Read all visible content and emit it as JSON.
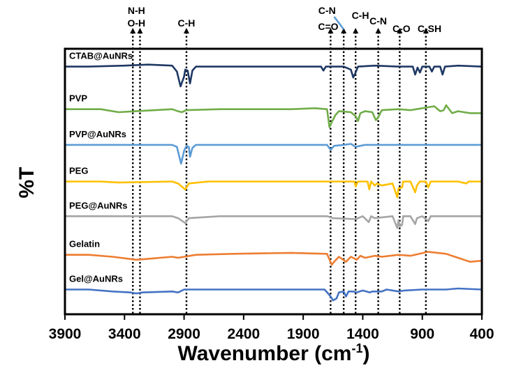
{
  "chart_data": {
    "type": "line",
    "title": "",
    "xlabel": "Wavenumber (cm",
    "xlabel_sup": "-1",
    "xlabel_close": ")",
    "ylabel": "%T",
    "xlim": [
      3900,
      400
    ],
    "x_reversed": true,
    "x_ticks": [
      3900,
      3400,
      2900,
      2400,
      1900,
      1400,
      900,
      400
    ],
    "x_tick_labels": [
      "3900",
      "3400",
      "2900",
      "2400",
      "1900",
      "1400",
      "900",
      "400"
    ],
    "grid": false,
    "reference_lines": [
      {
        "label_lines": [
          "N-H"
        ],
        "x": 3330
      },
      {
        "label_lines": [
          "O-H"
        ],
        "x": 3270
      },
      {
        "label_lines": [
          "C-H"
        ],
        "x": 2880
      },
      {
        "label_lines": [
          "C=O"
        ],
        "x": 1670
      },
      {
        "label_lines": [
          "C-N"
        ],
        "x": 1560,
        "label_x": 1690
      },
      {
        "label_lines": [
          "C-H"
        ],
        "x": 1460
      },
      {
        "label_lines": [
          "C-N"
        ],
        "x": 1270
      },
      {
        "label_lines": [
          "C-O"
        ],
        "x": 1090
      },
      {
        "label_lines": [
          "C-SH"
        ],
        "x": 870
      }
    ],
    "series": [
      {
        "name": "CTAB@AuNRs",
        "color": "#1f3864",
        "baseline": 8.7,
        "points": [
          [
            3900,
            0
          ],
          [
            3700,
            0
          ],
          [
            3400,
            0.05
          ],
          [
            3200,
            0.1
          ],
          [
            3000,
            0.05
          ],
          [
            2960,
            -0.25
          ],
          [
            2930,
            -1.0
          ],
          [
            2900,
            -0.5
          ],
          [
            2890,
            -0.15
          ],
          [
            2870,
            -0.2
          ],
          [
            2850,
            -0.85
          ],
          [
            2830,
            -0.2
          ],
          [
            2800,
            0
          ],
          [
            2500,
            0
          ],
          [
            1900,
            0
          ],
          [
            1750,
            0
          ],
          [
            1730,
            -0.2
          ],
          [
            1710,
            0
          ],
          [
            1560,
            0
          ],
          [
            1500,
            -0.15
          ],
          [
            1480,
            -0.55
          ],
          [
            1460,
            -0.3
          ],
          [
            1440,
            0
          ],
          [
            1300,
            0.05
          ],
          [
            1100,
            0
          ],
          [
            980,
            0
          ],
          [
            960,
            -0.4
          ],
          [
            940,
            -0.05
          ],
          [
            920,
            -0.3
          ],
          [
            900,
            0
          ],
          [
            840,
            0
          ],
          [
            820,
            -0.25
          ],
          [
            800,
            0
          ],
          [
            750,
            0
          ],
          [
            730,
            -0.4
          ],
          [
            710,
            0
          ],
          [
            600,
            0.05
          ],
          [
            400,
            0
          ]
        ]
      },
      {
        "name": "PVP",
        "color": "#70ad47",
        "baseline": 6.55,
        "points": [
          [
            3900,
            0
          ],
          [
            3600,
            0
          ],
          [
            3450,
            -0.15
          ],
          [
            3300,
            -0.1
          ],
          [
            3000,
            0
          ],
          [
            2950,
            -0.1
          ],
          [
            2920,
            -0.15
          ],
          [
            2880,
            -0.05
          ],
          [
            2600,
            0
          ],
          [
            2000,
            0
          ],
          [
            1800,
            0.05
          ],
          [
            1700,
            0
          ],
          [
            1680,
            -0.9
          ],
          [
            1660,
            -0.65
          ],
          [
            1630,
            -0.3
          ],
          [
            1600,
            -0.1
          ],
          [
            1500,
            -0.15
          ],
          [
            1460,
            -0.35
          ],
          [
            1440,
            -0.6
          ],
          [
            1420,
            -0.2
          ],
          [
            1380,
            -0.1
          ],
          [
            1320,
            -0.15
          ],
          [
            1290,
            -0.55
          ],
          [
            1270,
            -0.4
          ],
          [
            1240,
            -0.05
          ],
          [
            1100,
            0
          ],
          [
            1000,
            -0.05
          ],
          [
            950,
            0
          ],
          [
            800,
            0.15
          ],
          [
            750,
            -0.1
          ],
          [
            720,
            -0.05
          ],
          [
            700,
            0.2
          ],
          [
            650,
            -0.2
          ],
          [
            600,
            -0.1
          ],
          [
            500,
            -0.2
          ],
          [
            400,
            -0.2
          ]
        ]
      },
      {
        "name": "PVP@AuNRs",
        "color": "#5b9bd5",
        "baseline": 4.75,
        "points": [
          [
            3900,
            0
          ],
          [
            3500,
            0
          ],
          [
            3200,
            0
          ],
          [
            3000,
            0
          ],
          [
            2960,
            -0.1
          ],
          [
            2925,
            -0.95
          ],
          [
            2900,
            -0.3
          ],
          [
            2880,
            -0.05
          ],
          [
            2860,
            -0.1
          ],
          [
            2850,
            -0.6
          ],
          [
            2830,
            -0.15
          ],
          [
            2800,
            0
          ],
          [
            2000,
            0
          ],
          [
            1700,
            0
          ],
          [
            1670,
            -0.25
          ],
          [
            1640,
            -0.05
          ],
          [
            1560,
            0
          ],
          [
            1500,
            0.05
          ],
          [
            1460,
            -0.1
          ],
          [
            1380,
            0
          ],
          [
            1100,
            0
          ],
          [
            900,
            0
          ],
          [
            700,
            0
          ],
          [
            400,
            0
          ]
        ]
      },
      {
        "name": "PEG",
        "color": "#ffc000",
        "baseline": 2.9,
        "points": [
          [
            3900,
            0
          ],
          [
            3600,
            0
          ],
          [
            3450,
            -0.05
          ],
          [
            3000,
            0
          ],
          [
            2950,
            -0.1
          ],
          [
            2890,
            -0.4
          ],
          [
            2860,
            -0.1
          ],
          [
            2700,
            0
          ],
          [
            2000,
            0
          ],
          [
            1800,
            0
          ],
          [
            1470,
            0
          ],
          [
            1460,
            -0.25
          ],
          [
            1440,
            0
          ],
          [
            1360,
            0
          ],
          [
            1345,
            -0.4
          ],
          [
            1330,
            0
          ],
          [
            1300,
            -0.2
          ],
          [
            1280,
            -0.1
          ],
          [
            1240,
            -0.2
          ],
          [
            1150,
            -0.1
          ],
          [
            1110,
            -0.8
          ],
          [
            1100,
            -0.35
          ],
          [
            1070,
            -0.3
          ],
          [
            1060,
            0
          ],
          [
            1000,
            0
          ],
          [
            960,
            -0.55
          ],
          [
            945,
            -0.2
          ],
          [
            920,
            0
          ],
          [
            870,
            0
          ],
          [
            850,
            -0.3
          ],
          [
            830,
            0
          ],
          [
            600,
            0
          ],
          [
            530,
            -0.1
          ],
          [
            510,
            0
          ],
          [
            400,
            0
          ]
        ]
      },
      {
        "name": "PEG@AuNRs",
        "color": "#a5a5a5",
        "baseline": 1.15,
        "points": [
          [
            3900,
            0
          ],
          [
            3600,
            0
          ],
          [
            3400,
            0
          ],
          [
            3000,
            0
          ],
          [
            2950,
            -0.1
          ],
          [
            2890,
            -0.35
          ],
          [
            2860,
            -0.1
          ],
          [
            2600,
            0
          ],
          [
            2000,
            0
          ],
          [
            1700,
            0
          ],
          [
            1650,
            -0.1
          ],
          [
            1460,
            -0.15
          ],
          [
            1400,
            0
          ],
          [
            1350,
            -0.3
          ],
          [
            1330,
            0
          ],
          [
            1300,
            -0.1
          ],
          [
            1150,
            0
          ],
          [
            1110,
            -0.6
          ],
          [
            1100,
            -0.2
          ],
          [
            1090,
            -0.5
          ],
          [
            1070,
            -0.45
          ],
          [
            1060,
            0
          ],
          [
            1000,
            0
          ],
          [
            960,
            -0.4
          ],
          [
            945,
            -0.1
          ],
          [
            900,
            0
          ],
          [
            850,
            -0.25
          ],
          [
            830,
            0
          ],
          [
            600,
            0
          ],
          [
            400,
            0
          ]
        ]
      },
      {
        "name": "Gelatin",
        "color": "#ed7d31",
        "baseline": -0.8,
        "points": [
          [
            3900,
            0
          ],
          [
            3700,
            0
          ],
          [
            3500,
            -0.1
          ],
          [
            3300,
            -0.25
          ],
          [
            3200,
            -0.2
          ],
          [
            3000,
            -0.1
          ],
          [
            2950,
            -0.15
          ],
          [
            2800,
            0
          ],
          [
            2500,
            0.05
          ],
          [
            2000,
            0.1
          ],
          [
            1700,
            0.05
          ],
          [
            1660,
            -0.5
          ],
          [
            1640,
            -0.35
          ],
          [
            1600,
            -0.1
          ],
          [
            1540,
            -0.35
          ],
          [
            1500,
            -0.1
          ],
          [
            1450,
            -0.25
          ],
          [
            1420,
            -0.05
          ],
          [
            1380,
            -0.15
          ],
          [
            1300,
            -0.05
          ],
          [
            1240,
            -0.1
          ],
          [
            1100,
            0
          ],
          [
            1000,
            -0.05
          ],
          [
            850,
            0.15
          ],
          [
            700,
            0.05
          ],
          [
            600,
            -0.15
          ],
          [
            500,
            -0.35
          ],
          [
            400,
            -0.3
          ]
        ]
      },
      {
        "name": "Gel@AuNRs",
        "color": "#4472c4",
        "baseline": -2.55,
        "points": [
          [
            3900,
            0
          ],
          [
            3700,
            0
          ],
          [
            3500,
            -0.1
          ],
          [
            3350,
            -0.15
          ],
          [
            3300,
            -0.2
          ],
          [
            3250,
            -0.15
          ],
          [
            3000,
            -0.1
          ],
          [
            2950,
            -0.15
          ],
          [
            2900,
            0
          ],
          [
            2500,
            0
          ],
          [
            2000,
            0
          ],
          [
            1720,
            0
          ],
          [
            1670,
            -0.35
          ],
          [
            1650,
            -0.55
          ],
          [
            1620,
            -0.45
          ],
          [
            1600,
            -0.15
          ],
          [
            1560,
            -0.1
          ],
          [
            1540,
            -0.35
          ],
          [
            1520,
            -0.1
          ],
          [
            1480,
            -0.1
          ],
          [
            1450,
            -0.15
          ],
          [
            1400,
            -0.05
          ],
          [
            1340,
            -0.15
          ],
          [
            1320,
            -0.1
          ],
          [
            1240,
            -0.1
          ],
          [
            1200,
            0
          ],
          [
            1100,
            -0.1
          ],
          [
            1050,
            -0.05
          ],
          [
            900,
            0
          ],
          [
            700,
            0
          ],
          [
            600,
            0.05
          ],
          [
            400,
            0
          ]
        ]
      }
    ]
  }
}
